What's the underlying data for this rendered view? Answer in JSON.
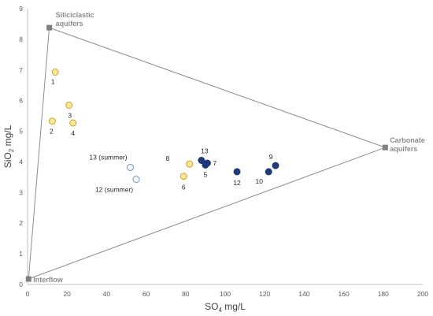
{
  "chart_data": {
    "type": "scatter",
    "title": "",
    "xlabel": "SO",
    "xlabel_sub": "4",
    "xlabel_unit": " mg/L",
    "ylabel": "SiO",
    "ylabel_sub": "2",
    "ylabel_unit": " mg/L",
    "xlim": [
      0,
      200
    ],
    "ylim": [
      0,
      9
    ],
    "xticks": [
      0,
      20,
      40,
      60,
      80,
      100,
      120,
      140,
      160,
      180,
      200
    ],
    "yticks": [
      0,
      1,
      2,
      3,
      4,
      5,
      6,
      7,
      8,
      9
    ],
    "grid": false,
    "colors": {
      "yellow_fill": "#ffe699",
      "yellow_stroke": "#c9a227",
      "navy": "#1f3a7a",
      "open_stroke": "#6f8fd4",
      "endmember": "#7f7f7f",
      "triangle": "#8c8c8c"
    },
    "endmembers": [
      {
        "name": "Siliciclastic aquifers",
        "lines": [
          "Siliciclastic",
          "aquifers"
        ],
        "x": 11,
        "y": 8.38
      },
      {
        "name": "Carbonate aquifers",
        "lines": [
          "Carbonate",
          "aquifers"
        ],
        "x": 181,
        "y": 4.47
      },
      {
        "name": "Interflow",
        "lines": [
          "Interflow"
        ],
        "x": 0.5,
        "y": 0.18
      }
    ],
    "series": [
      {
        "style": "yellow",
        "points": [
          {
            "label": "1",
            "x": 14,
            "y": 6.93
          },
          {
            "label": "2",
            "x": 12.5,
            "y": 5.33
          },
          {
            "label": "3",
            "x": 21,
            "y": 5.85
          },
          {
            "label": "4",
            "x": 23,
            "y": 5.27
          },
          {
            "label": "6",
            "x": 79,
            "y": 3.53
          },
          {
            "label": "8",
            "x": 82,
            "y": 3.93
          }
        ]
      },
      {
        "style": "navy",
        "points": [
          {
            "label": "13",
            "x": 88,
            "y": 4.05
          },
          {
            "label": "5",
            "x": 90,
            "y": 3.9
          },
          {
            "label": "7",
            "x": 91,
            "y": 3.96
          },
          {
            "label": "12",
            "x": 106,
            "y": 3.68
          },
          {
            "label": "10",
            "x": 122,
            "y": 3.68
          },
          {
            "label": "9",
            "x": 125.5,
            "y": 3.88
          }
        ]
      },
      {
        "style": "open",
        "points": [
          {
            "label": "13 (summer)",
            "x": 52,
            "y": 3.82
          },
          {
            "label": "12 (summer)",
            "x": 55,
            "y": 3.43
          }
        ]
      }
    ]
  }
}
